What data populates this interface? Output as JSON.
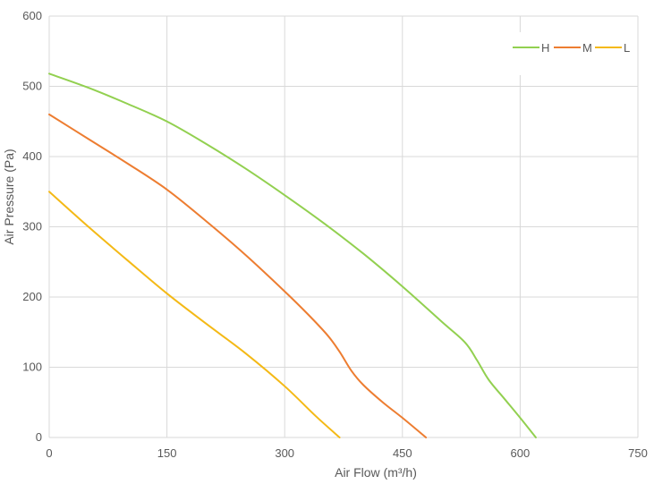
{
  "chart_data": {
    "type": "line",
    "xlabel": "Air Flow  (m³/h)",
    "ylabel": "Air Pressure  (Pa)",
    "xlim": [
      0,
      750
    ],
    "ylim": [
      0,
      600
    ],
    "xticks": [
      0,
      150,
      300,
      450,
      600,
      750
    ],
    "yticks": [
      0,
      100,
      200,
      300,
      400,
      500,
      600
    ],
    "grid": true,
    "legend_position": "top-right",
    "series": [
      {
        "name": "H",
        "color": "#92d050",
        "points": [
          [
            0,
            518
          ],
          [
            50,
            498
          ],
          [
            100,
            475
          ],
          [
            150,
            450
          ],
          [
            200,
            418
          ],
          [
            250,
            383
          ],
          [
            300,
            345
          ],
          [
            350,
            305
          ],
          [
            400,
            262
          ],
          [
            450,
            215
          ],
          [
            500,
            165
          ],
          [
            530,
            135
          ],
          [
            545,
            110
          ],
          [
            560,
            82
          ],
          [
            580,
            55
          ],
          [
            600,
            28
          ],
          [
            620,
            0
          ]
        ]
      },
      {
        "name": "M",
        "color": "#ed7d31",
        "points": [
          [
            0,
            460
          ],
          [
            50,
            425
          ],
          [
            100,
            390
          ],
          [
            150,
            353
          ],
          [
            200,
            308
          ],
          [
            250,
            260
          ],
          [
            300,
            208
          ],
          [
            330,
            175
          ],
          [
            355,
            145
          ],
          [
            370,
            122
          ],
          [
            385,
            95
          ],
          [
            400,
            75
          ],
          [
            425,
            50
          ],
          [
            450,
            28
          ],
          [
            480,
            0
          ]
        ]
      },
      {
        "name": "L",
        "color": "#f4b916",
        "points": [
          [
            0,
            350
          ],
          [
            50,
            300
          ],
          [
            100,
            252
          ],
          [
            150,
            205
          ],
          [
            200,
            162
          ],
          [
            250,
            120
          ],
          [
            300,
            73
          ],
          [
            340,
            30
          ],
          [
            370,
            0
          ]
        ]
      }
    ]
  }
}
